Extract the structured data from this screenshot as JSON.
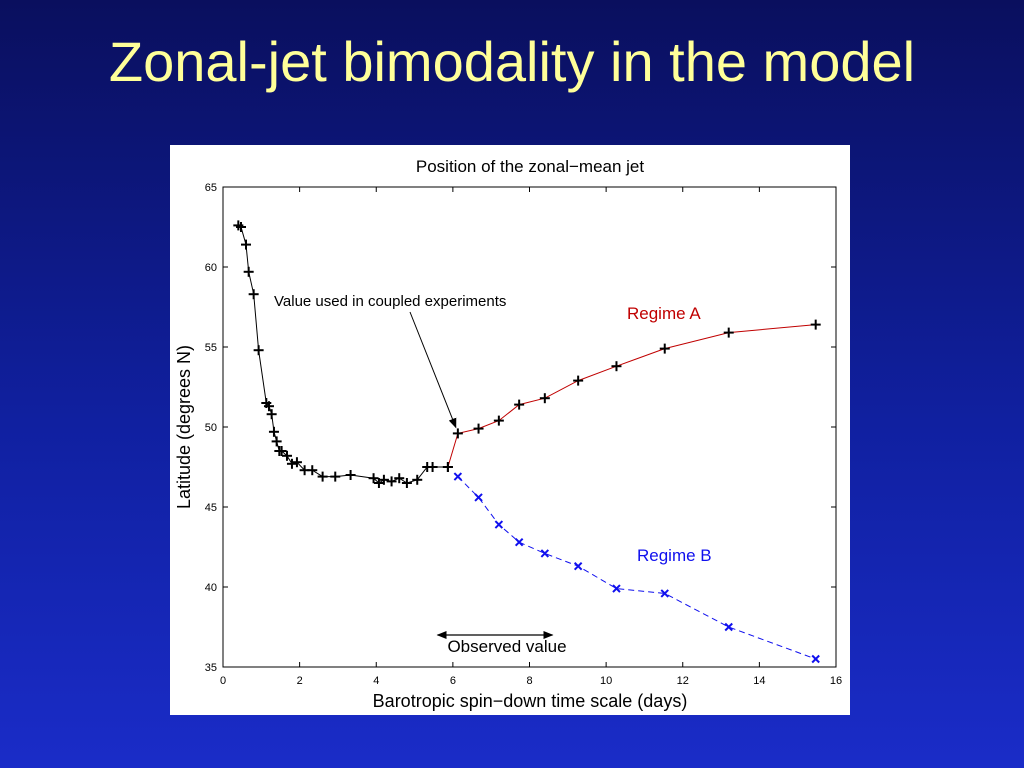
{
  "slide": {
    "title": "Zonal-jet bimodality in the model"
  },
  "chart_data": {
    "type": "line",
    "title": "Position of the zonal−mean jet",
    "xlabel": "Barotropic spin−down time scale (days)",
    "ylabel": "Latitude (degrees N)",
    "xlim": [
      0,
      16
    ],
    "ylim": [
      35,
      65
    ],
    "xticks": [
      0,
      2,
      4,
      6,
      8,
      10,
      12,
      14,
      16
    ],
    "yticks": [
      35,
      40,
      45,
      50,
      55,
      60,
      65
    ],
    "grid": false,
    "series": [
      {
        "name": "",
        "color": "#000000",
        "marker": "plus",
        "line": "solid",
        "x": [
          0.4,
          0.47,
          0.6,
          0.67,
          0.8,
          0.93,
          1.13,
          1.2,
          1.27,
          1.33,
          1.4,
          1.47,
          1.53,
          1.67,
          1.8,
          1.93,
          2.13,
          2.33,
          2.6,
          2.93,
          3.33,
          3.93,
          4.07,
          4.2,
          4.4,
          4.6,
          4.8,
          5.07,
          5.33,
          5.47,
          5.87
        ],
        "y": [
          62.6,
          62.5,
          61.4,
          59.7,
          58.3,
          54.8,
          51.5,
          51.3,
          50.8,
          49.7,
          49.1,
          48.5,
          48.5,
          48.2,
          47.7,
          47.8,
          47.3,
          47.3,
          46.9,
          46.9,
          47.0,
          46.8,
          46.5,
          46.7,
          46.6,
          46.8,
          46.5,
          46.7,
          47.5,
          47.5,
          47.5
        ]
      },
      {
        "name": "Regime A",
        "color": "#c00000",
        "marker": "plus",
        "line": "solid",
        "x": [
          5.87,
          6.13,
          6.67,
          7.2,
          7.73,
          8.4,
          9.27,
          10.27,
          11.53,
          13.2,
          15.47
        ],
        "y": [
          47.5,
          49.6,
          49.9,
          50.4,
          51.4,
          51.8,
          52.9,
          53.8,
          54.9,
          55.9,
          56.4
        ]
      },
      {
        "name": "Regime B",
        "color": "#1010ee",
        "marker": "x",
        "line": "dashed",
        "x": [
          6.13,
          6.67,
          7.2,
          7.73,
          8.4,
          9.27,
          10.27,
          11.53,
          13.2,
          15.47
        ],
        "y": [
          46.9,
          45.6,
          43.9,
          42.8,
          42.1,
          41.3,
          39.9,
          39.6,
          37.5,
          35.5
        ]
      }
    ],
    "annotations": {
      "arrow_label": "Value used in coupled experiments",
      "arrow_target": [
        6.13,
        49.6
      ],
      "observed_label": "Observed value",
      "observed_range": [
        5.6,
        8.6
      ],
      "observed_y": 37.0,
      "regime_a_label": "Regime A",
      "regime_b_label": "Regime B"
    }
  }
}
